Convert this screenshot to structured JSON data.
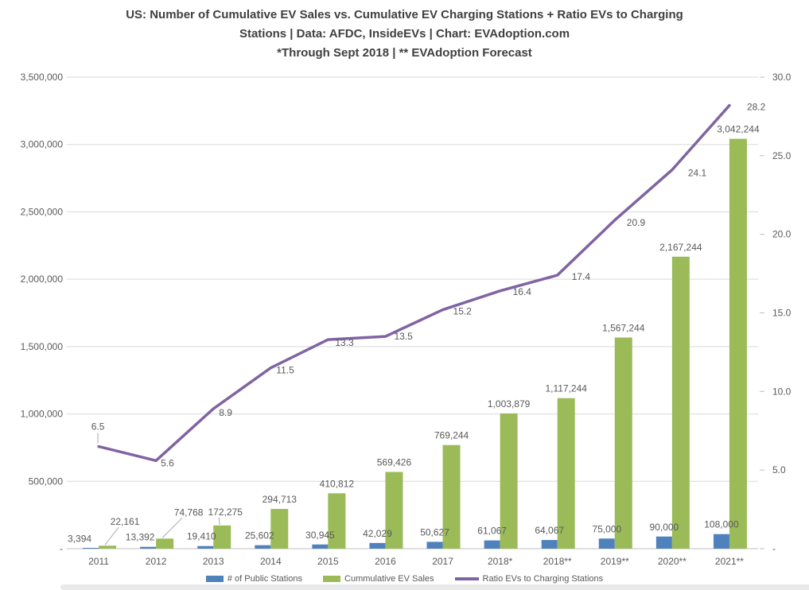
{
  "title": {
    "line1": "US: Number of Cumulative EV Sales vs. Cumulative EV Charging Stations + Ratio EVs to Charging",
    "line2": "Stations | Data: AFDC, InsideEVs | Chart: EVAdoption.com",
    "line3": "*Through Sept 2018 | ** EVAdoption Forecast"
  },
  "colors": {
    "stations": "#4F81BD",
    "sales": "#9BBB59",
    "ratio": "#8064A2",
    "grid": "#D9D9D9",
    "baseline": "#BFBFBF",
    "leader": "#A6A6A6",
    "axis_text": "#595959",
    "title_text": "#404040"
  },
  "chart_data": {
    "type": "bar",
    "subtype": "combo-bar-line-dual-axis",
    "grid": true,
    "legend_position": "bottom",
    "categories": [
      "2011",
      "2012",
      "2013",
      "2014",
      "2015",
      "2016",
      "2017",
      "2018*",
      "2018**",
      "2019**",
      "2020**",
      "2021**"
    ],
    "series": [
      {
        "name": "# of Public Stations",
        "type": "bar",
        "axis": "left",
        "values": [
          3394,
          13392,
          19410,
          25602,
          30945,
          42029,
          50627,
          61067,
          64067,
          75000,
          90000,
          108000
        ],
        "labels": [
          "3,394",
          "13,392",
          "19,410",
          "25,602",
          "30,945",
          "42,029",
          "50,627",
          "61,067",
          "64,067",
          "75,000",
          "90,000",
          "108,000"
        ]
      },
      {
        "name": "Cummulative EV Sales",
        "type": "bar",
        "axis": "left",
        "values": [
          22161,
          74768,
          172275,
          294713,
          410812,
          569426,
          769244,
          1003879,
          1117244,
          1567244,
          2167244,
          3042244
        ],
        "labels": [
          "22,161",
          "74,768",
          "172,275",
          "294,713",
          "410,812",
          "569,426",
          "769,244",
          "1,003,879",
          "1,117,244",
          "1,567,244",
          "2,167,244",
          "3,042,244"
        ]
      },
      {
        "name": "Ratio EVs to Charging Stations",
        "type": "line",
        "axis": "right",
        "values": [
          6.5,
          5.6,
          8.9,
          11.5,
          13.3,
          13.5,
          15.2,
          16.4,
          17.4,
          20.9,
          24.1,
          28.2
        ],
        "labels": [
          "6.5",
          "5.6",
          "8.9",
          "11.5",
          "13.3",
          "13.5",
          "15.2",
          "16.4",
          "17.4",
          "20.9",
          "24.1",
          "28.2"
        ]
      }
    ],
    "left_axis": {
      "min": 0,
      "max": 3500000,
      "tick_labels": [
        "3,500,000",
        "3,000,000",
        "2,500,000",
        "2,000,000",
        "1,500,000",
        "1,000,000",
        "500,000",
        "-"
      ]
    },
    "right_axis": {
      "min": 0,
      "max": 30,
      "tick_labels": [
        "30.0",
        "25.0",
        "20.0",
        "15.0",
        "10.0",
        "5.0",
        "-"
      ]
    }
  }
}
